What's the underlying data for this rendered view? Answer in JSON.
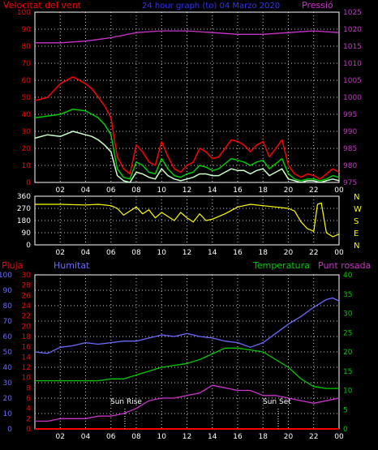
{
  "header": {
    "wind_title": "Velocitat del vent",
    "date_title": "24 hour graph (to)  04 Marzo 2020",
    "pressure_title": "Pressió"
  },
  "labels": {
    "rain": "Pluja",
    "humidity": "Humitat",
    "temperature": "Temperatura",
    "dewpoint": "Punt rosada",
    "sunrise": "Sun Rise",
    "sunset": "Sun Set"
  },
  "colors": {
    "wind_gust": "#ff0000",
    "wind_avg": "#00cc00",
    "wind_min": "#ccffcc",
    "pressure": "#cc33cc",
    "direction": "#ffff00",
    "rain": "#ff0000",
    "humidity": "#6b6bff",
    "temperature": "#00cc00",
    "dewpoint": "#cc33cc",
    "grid": "#ffffff"
  },
  "chart_data": [
    {
      "type": "line",
      "panel": "wind",
      "title": "Velocitat del vent",
      "x_ticks": [
        "02",
        "04",
        "06",
        "08",
        "10",
        "12",
        "14",
        "16",
        "18",
        "20",
        "22",
        "00"
      ],
      "xlim": [
        0,
        24
      ],
      "ylim_left": [
        0,
        100
      ],
      "y_ticks_left": [
        "0",
        "10",
        "20",
        "30",
        "40",
        "50",
        "60",
        "70",
        "80",
        "90",
        "100"
      ],
      "ylim_right": [
        975,
        1025
      ],
      "y_ticks_right": [
        "975",
        "980",
        "985",
        "990",
        "995",
        "1000",
        "1005",
        "1010",
        "1015",
        "1020",
        "1025"
      ],
      "series": [
        {
          "role": "gust",
          "axis": "left",
          "x": [
            0,
            1,
            2,
            3,
            4,
            4.5,
            5,
            5.5,
            6,
            6.5,
            7,
            7.5,
            8,
            8.5,
            9,
            9.5,
            10,
            10.5,
            11,
            11.5,
            12,
            12.5,
            13,
            13.5,
            14,
            14.5,
            15,
            15.5,
            16,
            16.5,
            17,
            17.5,
            18,
            18.5,
            19,
            19.5,
            20,
            20.5,
            21,
            21.5,
            22,
            22.5,
            23,
            23.5,
            24
          ],
          "y": [
            48,
            50,
            58,
            62,
            58,
            55,
            50,
            45,
            38,
            15,
            8,
            5,
            22,
            18,
            12,
            10,
            24,
            15,
            8,
            6,
            10,
            12,
            20,
            18,
            14,
            15,
            20,
            25,
            24,
            22,
            18,
            22,
            24,
            15,
            20,
            25,
            10,
            5,
            3,
            5,
            4,
            2,
            5,
            8,
            6
          ]
        },
        {
          "role": "average",
          "axis": "left",
          "x": [
            0,
            1,
            2,
            3,
            4,
            4.5,
            5,
            5.5,
            6,
            6.5,
            7,
            7.5,
            8,
            8.5,
            9,
            9.5,
            10,
            10.5,
            11,
            11.5,
            12,
            12.5,
            13,
            13.5,
            14,
            14.5,
            15,
            15.5,
            16,
            16.5,
            17,
            17.5,
            18,
            18.5,
            19,
            19.5,
            20,
            20.5,
            21,
            21.5,
            22,
            22.5,
            23,
            23.5,
            24
          ],
          "y": [
            38,
            39,
            40,
            43,
            42,
            40,
            38,
            34,
            28,
            8,
            3,
            2,
            12,
            10,
            6,
            5,
            14,
            8,
            4,
            3,
            5,
            6,
            10,
            9,
            7,
            8,
            11,
            14,
            13,
            12,
            10,
            12,
            13,
            8,
            11,
            14,
            5,
            2,
            1,
            2,
            2,
            1,
            2,
            4,
            3
          ]
        },
        {
          "role": "minimum",
          "axis": "left",
          "x": [
            0,
            1,
            2,
            3,
            4,
            4.5,
            5,
            5.5,
            6,
            6.5,
            7,
            7.5,
            8,
            8.5,
            9,
            9.5,
            10,
            10.5,
            11,
            11.5,
            12,
            12.5,
            13,
            13.5,
            14,
            14.5,
            15,
            15.5,
            16,
            16.5,
            17,
            17.5,
            18,
            18.5,
            19,
            19.5,
            20,
            20.5,
            21,
            21.5,
            22,
            22.5,
            23,
            23.5,
            24
          ],
          "y": [
            26,
            28,
            27,
            30,
            28,
            27,
            25,
            22,
            18,
            4,
            1,
            0,
            6,
            5,
            3,
            2,
            8,
            4,
            2,
            1,
            2,
            3,
            5,
            5,
            4,
            4,
            6,
            8,
            7,
            7,
            5,
            7,
            8,
            4,
            6,
            8,
            2,
            1,
            0,
            1,
            1,
            0,
            1,
            2,
            1
          ]
        },
        {
          "role": "pressure",
          "axis": "right",
          "x": [
            0,
            2,
            4,
            6,
            8,
            10,
            12,
            14,
            16,
            18,
            20,
            22,
            24
          ],
          "y": [
            1016,
            1016,
            1016.5,
            1017.5,
            1019,
            1019.5,
            1019.5,
            1019,
            1018.5,
            1018.5,
            1019,
            1019.5,
            1019
          ]
        }
      ]
    },
    {
      "type": "line",
      "panel": "direction",
      "x_ticks": [
        "02",
        "04",
        "06",
        "08",
        "10",
        "12",
        "14",
        "16",
        "18",
        "20",
        "22",
        "00"
      ],
      "xlim": [
        0,
        24
      ],
      "ylim": [
        0,
        360
      ],
      "y_ticks": [
        "0",
        "90",
        "180",
        "270",
        "360"
      ],
      "compass_labels": [
        "N",
        "W",
        "S",
        "E",
        "N"
      ],
      "series": [
        {
          "role": "direction",
          "x": [
            0,
            2,
            4,
            5,
            6,
            6.5,
            7,
            7.5,
            8,
            8.5,
            9,
            9.5,
            10,
            10.5,
            11,
            11.5,
            12,
            12.5,
            13,
            13.5,
            14,
            15,
            16,
            17,
            18,
            19,
            20,
            20.5,
            21,
            21.5,
            22,
            22.3,
            22.6,
            23,
            23.5,
            24
          ],
          "y": [
            300,
            300,
            295,
            300,
            290,
            270,
            220,
            250,
            280,
            230,
            260,
            200,
            240,
            210,
            180,
            240,
            200,
            170,
            230,
            180,
            190,
            230,
            280,
            300,
            290,
            280,
            270,
            250,
            170,
            120,
            100,
            300,
            310,
            90,
            60,
            80
          ]
        }
      ]
    },
    {
      "type": "line",
      "panel": "temperature-humidity",
      "x_ticks": [
        "02",
        "04",
        "06",
        "08",
        "10",
        "12",
        "14",
        "16",
        "18",
        "20",
        "22",
        "00"
      ],
      "xlim": [
        0,
        24
      ],
      "ylim_rain": [
        0,
        30
      ],
      "y_ticks_rain": [
        "0",
        "2",
        "4",
        "6",
        "8",
        "10",
        "12",
        "14",
        "16",
        "18",
        "20",
        "22",
        "24",
        "26",
        "28",
        "30"
      ],
      "ylim_humidity": [
        0,
        100
      ],
      "y_ticks_humidity": [
        "0",
        "10",
        "20",
        "30",
        "40",
        "50",
        "60",
        "70",
        "80",
        "90",
        "100"
      ],
      "ylim_temperature": [
        0,
        40
      ],
      "y_ticks_temperature": [
        "0",
        "5",
        "10",
        "15",
        "20",
        "25",
        "30",
        "35",
        "40"
      ],
      "annotations": [
        {
          "text": "Sun Rise",
          "x": 7.1
        },
        {
          "text": "Sun Set",
          "x": 19.2
        }
      ],
      "series": [
        {
          "role": "rain",
          "axis": "rain",
          "x": [
            0,
            24
          ],
          "y": [
            0,
            0
          ]
        },
        {
          "role": "humidity",
          "axis": "humidity",
          "x": [
            0,
            1,
            2,
            3,
            4,
            5,
            6,
            7,
            8,
            9,
            10,
            11,
            12,
            13,
            14,
            15,
            16,
            17,
            18,
            19,
            20,
            21,
            22,
            23,
            23.5,
            24
          ],
          "y": [
            50,
            49,
            53,
            54,
            56,
            55,
            56,
            57,
            57,
            59,
            61,
            60,
            62,
            60,
            59,
            57,
            56,
            53,
            56,
            62,
            68,
            73,
            79,
            84,
            85,
            83
          ]
        },
        {
          "role": "temperature",
          "axis": "temperature",
          "x": [
            0,
            1,
            2,
            3,
            4,
            5,
            6,
            7,
            8,
            9,
            10,
            11,
            12,
            13,
            14,
            15,
            16,
            17,
            18,
            19,
            20,
            21,
            22,
            23,
            24
          ],
          "y": [
            12.5,
            12.5,
            12.5,
            12.5,
            12.5,
            12.5,
            13,
            13,
            14,
            15,
            16,
            16.5,
            17,
            18,
            19.5,
            21,
            21,
            20.5,
            20,
            18,
            16,
            13,
            11,
            10.5,
            10.5
          ]
        },
        {
          "role": "dewpoint",
          "axis": "rain",
          "x": [
            0,
            1,
            2,
            3,
            4,
            5,
            6,
            7,
            8,
            9,
            10,
            11,
            12,
            13,
            14,
            15,
            16,
            17,
            18,
            19,
            20,
            21,
            22,
            23,
            24
          ],
          "y": [
            1.5,
            1.5,
            2,
            2,
            2,
            2.5,
            2.5,
            3,
            4,
            5.5,
            6,
            6,
            6.5,
            7,
            8.5,
            8,
            7.5,
            7.5,
            6.5,
            6.5,
            6,
            5.5,
            5,
            5.5,
            6
          ]
        }
      ]
    }
  ]
}
